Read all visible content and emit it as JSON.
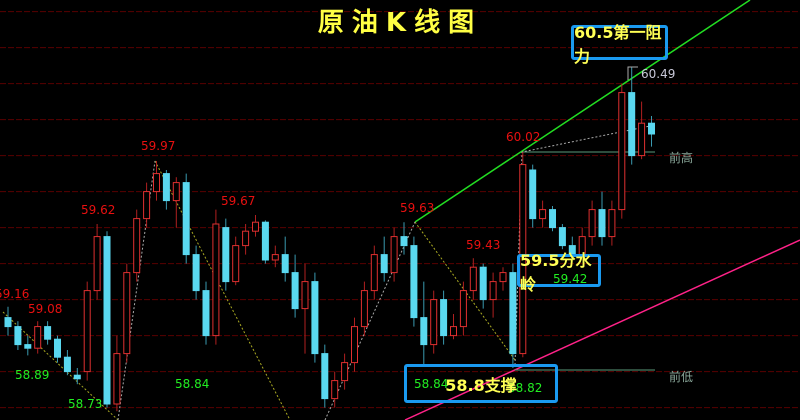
{
  "title": "原油K线图",
  "colors": {
    "up": "#e03030",
    "down": "#5ad8f0",
    "grid": "#5a0000",
    "resistance_line": "#22dd22",
    "support_line": "#ff2288",
    "annotation_border": "#1a9af0",
    "annotation_text": "#ffff55"
  },
  "chart_data": {
    "type": "candlestick",
    "title": "原油K线图",
    "ylim": [
      58.5,
      60.9
    ],
    "gridlines": [
      58.6,
      58.8,
      59.0,
      59.2,
      59.4,
      59.6,
      59.8,
      60.0,
      60.2,
      60.4,
      60.6,
      60.8
    ],
    "candles_ohlc": [
      [
        59.1,
        59.16,
        59.0,
        59.05
      ],
      [
        59.05,
        59.08,
        58.92,
        58.95
      ],
      [
        58.95,
        59.0,
        58.89,
        58.93
      ],
      [
        58.93,
        59.08,
        58.9,
        59.05
      ],
      [
        59.05,
        59.08,
        58.95,
        58.98
      ],
      [
        58.98,
        59.0,
        58.85,
        58.88
      ],
      [
        58.88,
        58.92,
        58.78,
        58.8
      ],
      [
        58.78,
        58.82,
        58.73,
        58.76
      ],
      [
        58.8,
        59.3,
        58.75,
        59.25
      ],
      [
        59.25,
        59.62,
        59.2,
        59.55
      ],
      [
        59.55,
        59.58,
        58.6,
        58.62
      ],
      [
        58.62,
        59.0,
        58.58,
        58.9
      ],
      [
        58.9,
        59.4,
        58.85,
        59.35
      ],
      [
        59.35,
        59.7,
        59.3,
        59.65
      ],
      [
        59.65,
        59.85,
        59.6,
        59.8
      ],
      [
        59.8,
        59.97,
        59.75,
        59.9
      ],
      [
        59.9,
        59.92,
        59.7,
        59.75
      ],
      [
        59.75,
        59.88,
        59.6,
        59.85
      ],
      [
        59.85,
        59.9,
        59.4,
        59.45
      ],
      [
        59.45,
        59.5,
        59.2,
        59.25
      ],
      [
        59.25,
        59.3,
        58.95,
        59.0
      ],
      [
        59.0,
        59.7,
        58.95,
        59.62
      ],
      [
        59.6,
        59.65,
        59.25,
        59.3
      ],
      [
        59.3,
        59.55,
        59.28,
        59.5
      ],
      [
        59.5,
        59.62,
        59.45,
        59.58
      ],
      [
        59.58,
        59.67,
        59.55,
        59.63
      ],
      [
        59.63,
        59.64,
        59.4,
        59.42
      ],
      [
        59.42,
        59.5,
        59.38,
        59.45
      ],
      [
        59.45,
        59.55,
        59.3,
        59.35
      ],
      [
        59.35,
        59.45,
        59.1,
        59.15
      ],
      [
        59.15,
        59.4,
        58.9,
        59.3
      ],
      [
        59.3,
        59.35,
        58.85,
        58.9
      ],
      [
        58.9,
        58.95,
        58.6,
        58.65
      ],
      [
        58.65,
        58.8,
        58.6,
        58.75
      ],
      [
        58.75,
        58.9,
        58.7,
        58.85
      ],
      [
        58.85,
        59.1,
        58.8,
        59.05
      ],
      [
        59.05,
        59.3,
        59.0,
        59.25
      ],
      [
        59.25,
        59.5,
        59.2,
        59.45
      ],
      [
        59.45,
        59.55,
        59.3,
        59.35
      ],
      [
        59.35,
        59.6,
        59.3,
        59.55
      ],
      [
        59.55,
        59.63,
        59.45,
        59.5
      ],
      [
        59.5,
        59.55,
        59.05,
        59.1
      ],
      [
        59.1,
        59.3,
        58.84,
        58.95
      ],
      [
        58.95,
        59.25,
        58.9,
        59.2
      ],
      [
        59.2,
        59.25,
        58.95,
        59.0
      ],
      [
        59.0,
        59.12,
        58.98,
        59.05
      ],
      [
        59.05,
        59.3,
        59.0,
        59.25
      ],
      [
        59.25,
        59.43,
        59.2,
        59.38
      ],
      [
        59.38,
        59.4,
        59.15,
        59.2
      ],
      [
        59.2,
        59.35,
        59.1,
        59.3
      ],
      [
        59.3,
        59.38,
        59.25,
        59.35
      ],
      [
        59.35,
        59.4,
        58.82,
        58.9
      ],
      [
        58.9,
        60.02,
        58.88,
        59.95
      ],
      [
        59.92,
        59.95,
        59.6,
        59.65
      ],
      [
        59.65,
        59.75,
        59.6,
        59.7
      ],
      [
        59.7,
        59.72,
        59.58,
        59.6
      ],
      [
        59.6,
        59.62,
        59.48,
        59.5
      ],
      [
        59.5,
        59.55,
        59.42,
        59.45
      ],
      [
        59.45,
        59.6,
        59.44,
        59.55
      ],
      [
        59.55,
        59.75,
        59.5,
        59.7
      ],
      [
        59.7,
        59.8,
        59.5,
        59.55
      ],
      [
        59.55,
        59.75,
        59.5,
        59.7
      ],
      [
        59.7,
        60.4,
        59.65,
        60.35
      ],
      [
        60.35,
        60.49,
        59.95,
        60.0
      ],
      [
        60.0,
        60.3,
        59.98,
        60.18
      ],
      [
        60.18,
        60.22,
        60.05,
        60.12
      ]
    ],
    "high_labels": [
      "59.16",
      "59.08",
      "59.62",
      "59.97",
      "59.67",
      "59.63",
      "59.43",
      "60.02"
    ],
    "low_labels": [
      "58.89",
      "58.73",
      "58.84",
      "58.84",
      "58.82",
      "59.42"
    ],
    "last_high_label": "60.49",
    "reference_lines": {
      "prev_high": "前高",
      "prev_low": "前低"
    },
    "annotations": {
      "resistance": "60.5第一阻力",
      "pivot": "59.5分水岭",
      "support": "58.8支撑"
    }
  }
}
